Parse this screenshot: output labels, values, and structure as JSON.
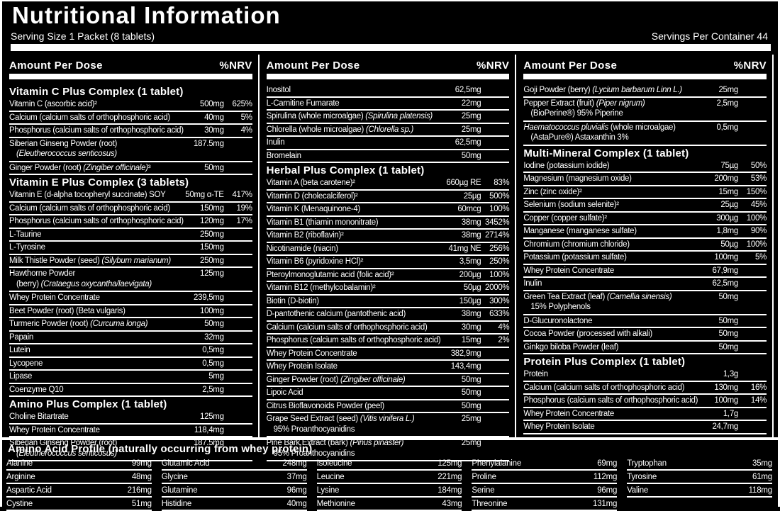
{
  "header": {
    "title": "Nutritional Information",
    "serving_size": "Serving Size 1 Packet (8 tablets)",
    "servings_per_container": "Servings Per Container 44"
  },
  "colors": {
    "background": "#000000",
    "text": "#ffffff"
  },
  "columns": [
    {
      "header": {
        "amount_label": "Amount Per Dose",
        "nrv_label": "%NRV"
      },
      "rows": [
        {
          "type": "section",
          "text": "Vitamin C Plus Complex (1 tablet)"
        },
        {
          "type": "row",
          "name": "Vitamin C (ascorbic acid)²",
          "amount": "500mg",
          "nrv": "625%"
        },
        {
          "type": "row",
          "name": "Calcium (calcium salts of orthophosphoric acid)",
          "amount": "40mg",
          "nrv": "5%"
        },
        {
          "type": "row",
          "name": "Phosphorus (calcium salts of orthophosphoric acid)",
          "amount": "30mg",
          "nrv": "4%"
        },
        {
          "type": "row",
          "name": "Siberian Ginseng Powder (root)",
          "sub": "*(Eleutherococcus senticosus)*",
          "amount": "187.5mg",
          "nrv": ""
        },
        {
          "type": "row",
          "name": "Ginger Powder (root) *(Zingiber officinale)*³",
          "amount": "50mg",
          "nrv": ""
        },
        {
          "type": "section",
          "text": "Vitamin E Plus Complex (3 tablets)"
        },
        {
          "type": "row",
          "name": "Vitamin E (d-alpha tocopheryl succinate) SOY",
          "amount": "50mg α-TE",
          "nrv": "417%"
        },
        {
          "type": "row",
          "name": "Calcium (calcium salts of orthophosphoric acid)",
          "amount": "150mg",
          "nrv": "19%"
        },
        {
          "type": "row",
          "name": "Phosphorus (calcium salts of orthophosphoric acid)",
          "amount": "120mg",
          "nrv": "17%"
        },
        {
          "type": "row",
          "name": "L-Taurine",
          "amount": "250mg",
          "nrv": ""
        },
        {
          "type": "row",
          "name": "L-Tyrosine",
          "amount": "150mg",
          "nrv": ""
        },
        {
          "type": "row",
          "name": "Milk Thistle Powder (seed) *(Silybum marianum)*",
          "amount": "250mg",
          "nrv": ""
        },
        {
          "type": "row",
          "name": "Hawthorne Powder",
          "sub": "(berry) *(Crataegus oxycantha/laevigata)*",
          "amount": "125mg",
          "nrv": ""
        },
        {
          "type": "row",
          "name": "Whey Protein Concentrate",
          "amount": "239,5mg",
          "nrv": ""
        },
        {
          "type": "row",
          "name": "Beet Powder (root) (Beta vulgaris)",
          "amount": "100mg",
          "nrv": ""
        },
        {
          "type": "row",
          "name": "Turmeric Powder (root) *(Curcuma longa)*",
          "amount": "50mg",
          "nrv": ""
        },
        {
          "type": "row",
          "name": "Papain",
          "amount": "32mg",
          "nrv": ""
        },
        {
          "type": "row",
          "name": "Lutein",
          "amount": "0,5mg",
          "nrv": ""
        },
        {
          "type": "row",
          "name": "Lycopene",
          "amount": "0,5mg",
          "nrv": ""
        },
        {
          "type": "row",
          "name": "Lipase",
          "amount": "5mg",
          "nrv": ""
        },
        {
          "type": "row",
          "name": "Coenzyme Q10",
          "amount": "2,5mg",
          "nrv": ""
        },
        {
          "type": "section",
          "text": "Amino Plus Complex (1 tablet)"
        },
        {
          "type": "row",
          "name": "Choline Bitartrate",
          "amount": "125mg",
          "nrv": ""
        },
        {
          "type": "row",
          "name": "Whey Protein Concentrate",
          "amount": "118,4mg",
          "nrv": ""
        },
        {
          "type": "row",
          "name": "Siberian Ginseng Powder (root)",
          "sub": "*(Eleutherococcus senticosus)*",
          "amount": "187.5mg",
          "nrv": ""
        }
      ]
    },
    {
      "header": {
        "amount_label": "Amount Per Dose",
        "nrv_label": "%NRV"
      },
      "rows": [
        {
          "type": "row",
          "name": "Inositol",
          "amount": "62,5mg",
          "nrv": ""
        },
        {
          "type": "row",
          "name": "L-Carnitine Fumarate",
          "amount": "22mg",
          "nrv": ""
        },
        {
          "type": "row",
          "name": "Spirulina (whole microalgae) *(Spirulina platensis)*",
          "amount": "25mg",
          "nrv": ""
        },
        {
          "type": "row",
          "name": "Chlorella (whole microalgae) *(Chlorella sp.)*",
          "amount": "25mg",
          "nrv": ""
        },
        {
          "type": "row",
          "name": "Inulin",
          "amount": "62,5mg",
          "nrv": ""
        },
        {
          "type": "row",
          "name": "Bromelain",
          "amount": "50mg",
          "nrv": ""
        },
        {
          "type": "section",
          "text": "Herbal Plus Complex (1 tablet)"
        },
        {
          "type": "row",
          "name": "Vitamin A (beta carotene)²",
          "amount": "660µg RE",
          "nrv": "83%"
        },
        {
          "type": "row",
          "name": "Vitamin D (cholecalciferol)²",
          "amount": "25µg",
          "nrv": "500%"
        },
        {
          "type": "row",
          "name": "Vitamin K (Menaquinone-4)",
          "amount": "60mcg",
          "nrv": "100%"
        },
        {
          "type": "row",
          "name": "Vitamin B1 (thiamin mononitrate)",
          "amount": "38mg",
          "nrv": "3452%"
        },
        {
          "type": "row",
          "name": "Vitamin B2 (riboflavin)²",
          "amount": "38mg",
          "nrv": "2714%"
        },
        {
          "type": "row",
          "name": "Nicotinamide (niacin)",
          "amount": "41mg NE",
          "nrv": "256%"
        },
        {
          "type": "row",
          "name": "Vitamin B6 (pyridoxine HCl)²",
          "amount": "3,5mg",
          "nrv": "250%"
        },
        {
          "type": "row",
          "name": "Pteroylmonoglutamic acid (folic acid)²",
          "amount": "200µg",
          "nrv": "100%"
        },
        {
          "type": "row",
          "name": "Vitamin B12 (methylcobalamin)²",
          "amount": "50µg",
          "nrv": "2000%"
        },
        {
          "type": "row",
          "name": "Biotin (D-biotin)",
          "amount": "150µg",
          "nrv": "300%"
        },
        {
          "type": "row",
          "name": "D-pantothenic calcium (pantothenic acid)",
          "amount": "38mg",
          "nrv": "633%"
        },
        {
          "type": "row",
          "name": "Calcium (calcium salts of orthophosphoric acid)",
          "amount": "30mg",
          "nrv": "4%"
        },
        {
          "type": "row",
          "name": "Phosphorus (calcium salts of orthophosphoric acid)",
          "amount": "15mg",
          "nrv": "2%"
        },
        {
          "type": "row",
          "name": "Whey Protein Concentrate",
          "amount": "382,9mg",
          "nrv": ""
        },
        {
          "type": "row",
          "name": "Whey Protein Isolate",
          "amount": "143,4mg",
          "nrv": ""
        },
        {
          "type": "row",
          "name": "Ginger Powder (root) *(Zingiber officinale)*",
          "amount": "50mg",
          "nrv": ""
        },
        {
          "type": "row",
          "name": "Lipoic Acid",
          "amount": "50mg",
          "nrv": ""
        },
        {
          "type": "row",
          "name": "Citrus Bioflavonoids Powder (peel)",
          "amount": "50mg",
          "nrv": ""
        },
        {
          "type": "row",
          "name": "Grape Seed Extract (seed) *(Vitis vinifera L.)*",
          "sub": "95% Proanthocyanidins",
          "amount": "25mg",
          "nrv": ""
        },
        {
          "type": "row",
          "name": "Pine Bark Extract (bark) *(Pinus pinaster)*",
          "sub": "95% Proanthocyanidins",
          "amount": "25mg",
          "nrv": ""
        }
      ]
    },
    {
      "header": {
        "amount_label": "Amount Per Dose",
        "nrv_label": "%NRV"
      },
      "rows": [
        {
          "type": "row",
          "name": "Goji Powder (berry) *(Lycium barbarum Linn L.)*",
          "amount": "25mg",
          "nrv": ""
        },
        {
          "type": "row",
          "name": "Pepper Extract (fruit) *(Piper nigrum)*",
          "sub": "(BioPerine®) 95% Piperine",
          "amount": "2,5mg",
          "nrv": ""
        },
        {
          "type": "row",
          "name": "*Haematococcus pluvialis* (whole microalgae)",
          "sub": "(AstaPure®) Astaxanthin 3%",
          "amount": "0,5mg",
          "nrv": ""
        },
        {
          "type": "section",
          "text": "Multi-Mineral Complex (1 tablet)"
        },
        {
          "type": "row",
          "name": "Iodine (potassium iodide)",
          "amount": "75µg",
          "nrv": "50%"
        },
        {
          "type": "row",
          "name": "Magnesium (magnesium oxide)",
          "amount": "200mg",
          "nrv": "53%"
        },
        {
          "type": "row",
          "name": "Zinc (zinc oxide)²",
          "amount": "15mg",
          "nrv": "150%"
        },
        {
          "type": "row",
          "name": "Selenium (sodium selenite)²",
          "amount": "25µg",
          "nrv": "45%"
        },
        {
          "type": "row",
          "name": "Copper (copper sulfate)²",
          "amount": "300µg",
          "nrv": "100%"
        },
        {
          "type": "row",
          "name": "Manganese (manganese sulfate)",
          "amount": "1,8mg",
          "nrv": "90%"
        },
        {
          "type": "row",
          "name": "Chromium (chromium chloride)",
          "amount": "50µg",
          "nrv": "100%"
        },
        {
          "type": "row",
          "name": "Potassium (potassium sulfate)",
          "amount": "100mg",
          "nrv": "5%"
        },
        {
          "type": "row",
          "name": "Whey Protein Concentrate",
          "amount": "67,9mg",
          "nrv": ""
        },
        {
          "type": "row",
          "name": "Inulin",
          "amount": "62,5mg",
          "nrv": ""
        },
        {
          "type": "row",
          "name": "Green Tea Extract (leaf) *(Camellia sinensis)*",
          "sub": "15% Polyphenols",
          "amount": "50mg",
          "nrv": ""
        },
        {
          "type": "row",
          "name": "D-Glucuronolactone",
          "amount": "50mg",
          "nrv": ""
        },
        {
          "type": "row",
          "name": "Cocoa Powder (processed with alkali)",
          "amount": "50mg",
          "nrv": ""
        },
        {
          "type": "row",
          "name": "Ginkgo biloba Powder (leaf)",
          "amount": "50mg",
          "nrv": ""
        },
        {
          "type": "section",
          "text": "Protein Plus Complex (1 tablet)"
        },
        {
          "type": "row",
          "name": "Protein",
          "amount": "1,3g",
          "nrv": ""
        },
        {
          "type": "row",
          "name": "Calcium (calcium salts of orthophosphoric acid)",
          "amount": "130mg",
          "nrv": "16%"
        },
        {
          "type": "row",
          "name": "Phosphorus (calcium salts of orthophosphoric acid)",
          "amount": "100mg",
          "nrv": "14%"
        },
        {
          "type": "row",
          "name": "Whey Protein Concentrate",
          "amount": "1,7g",
          "nrv": ""
        },
        {
          "type": "row",
          "name": "Whey Protein Isolate",
          "amount": "24,7mg",
          "nrv": ""
        }
      ]
    }
  ],
  "amino": {
    "title": "Amino Acid Profile (naturally occurring from whey protein)",
    "columns": [
      [
        {
          "name": "Alanine",
          "value": "99mg"
        },
        {
          "name": "Arginine",
          "value": "48mg"
        },
        {
          "name": "Aspartic Acid",
          "value": "216mg"
        },
        {
          "name": "Cystine",
          "value": "51mg"
        }
      ],
      [
        {
          "name": "Glutamic Acid",
          "value": "248mg"
        },
        {
          "name": "Glycine",
          "value": "37mg"
        },
        {
          "name": "Glutamine",
          "value": "96mg"
        },
        {
          "name": "Histidine",
          "value": "40mg"
        }
      ],
      [
        {
          "name": "Isoleucine",
          "value": "125mg"
        },
        {
          "name": "Leucine",
          "value": "221mg"
        },
        {
          "name": "Lysine",
          "value": "184mg"
        },
        {
          "name": "Methionine",
          "value": "43mg"
        }
      ],
      [
        {
          "name": "Phenylalanine",
          "value": "69mg"
        },
        {
          "name": "Proline",
          "value": "112mg"
        },
        {
          "name": "Serine",
          "value": "96mg"
        },
        {
          "name": "Threonine",
          "value": "131mg"
        }
      ],
      [
        {
          "name": "Tryptophan",
          "value": "35mg"
        },
        {
          "name": "Tyrosine",
          "value": "61mg"
        },
        {
          "name": "Valine",
          "value": "118mg"
        }
      ]
    ]
  }
}
